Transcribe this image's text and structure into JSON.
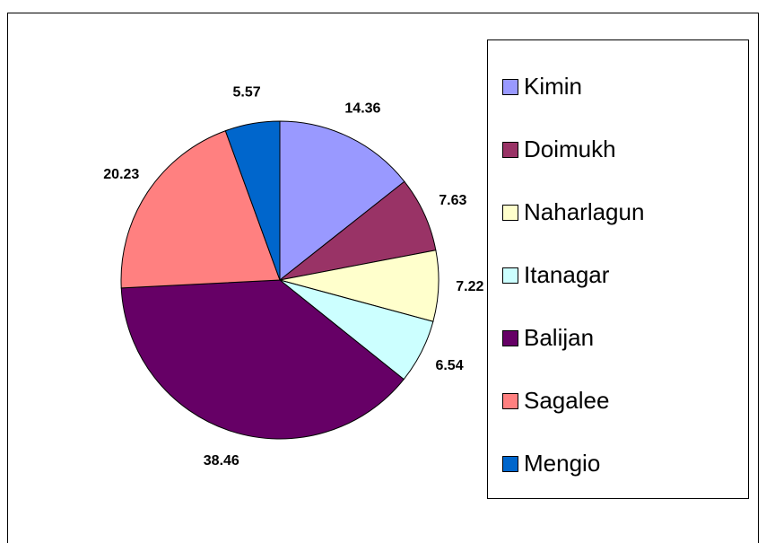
{
  "chart_data": {
    "type": "pie",
    "categories": [
      "Kimin",
      "Doimukh",
      "Naharlagun",
      "Itanagar",
      "Balijan",
      "Sagalee",
      "Mengio"
    ],
    "values": [
      14.36,
      7.63,
      7.22,
      6.54,
      38.46,
      20.23,
      5.57
    ],
    "colors": [
      "#9999ff",
      "#993366",
      "#ffffcc",
      "#ccffff",
      "#660066",
      "#ff8080",
      "#0066cc"
    ],
    "legend": "right"
  }
}
